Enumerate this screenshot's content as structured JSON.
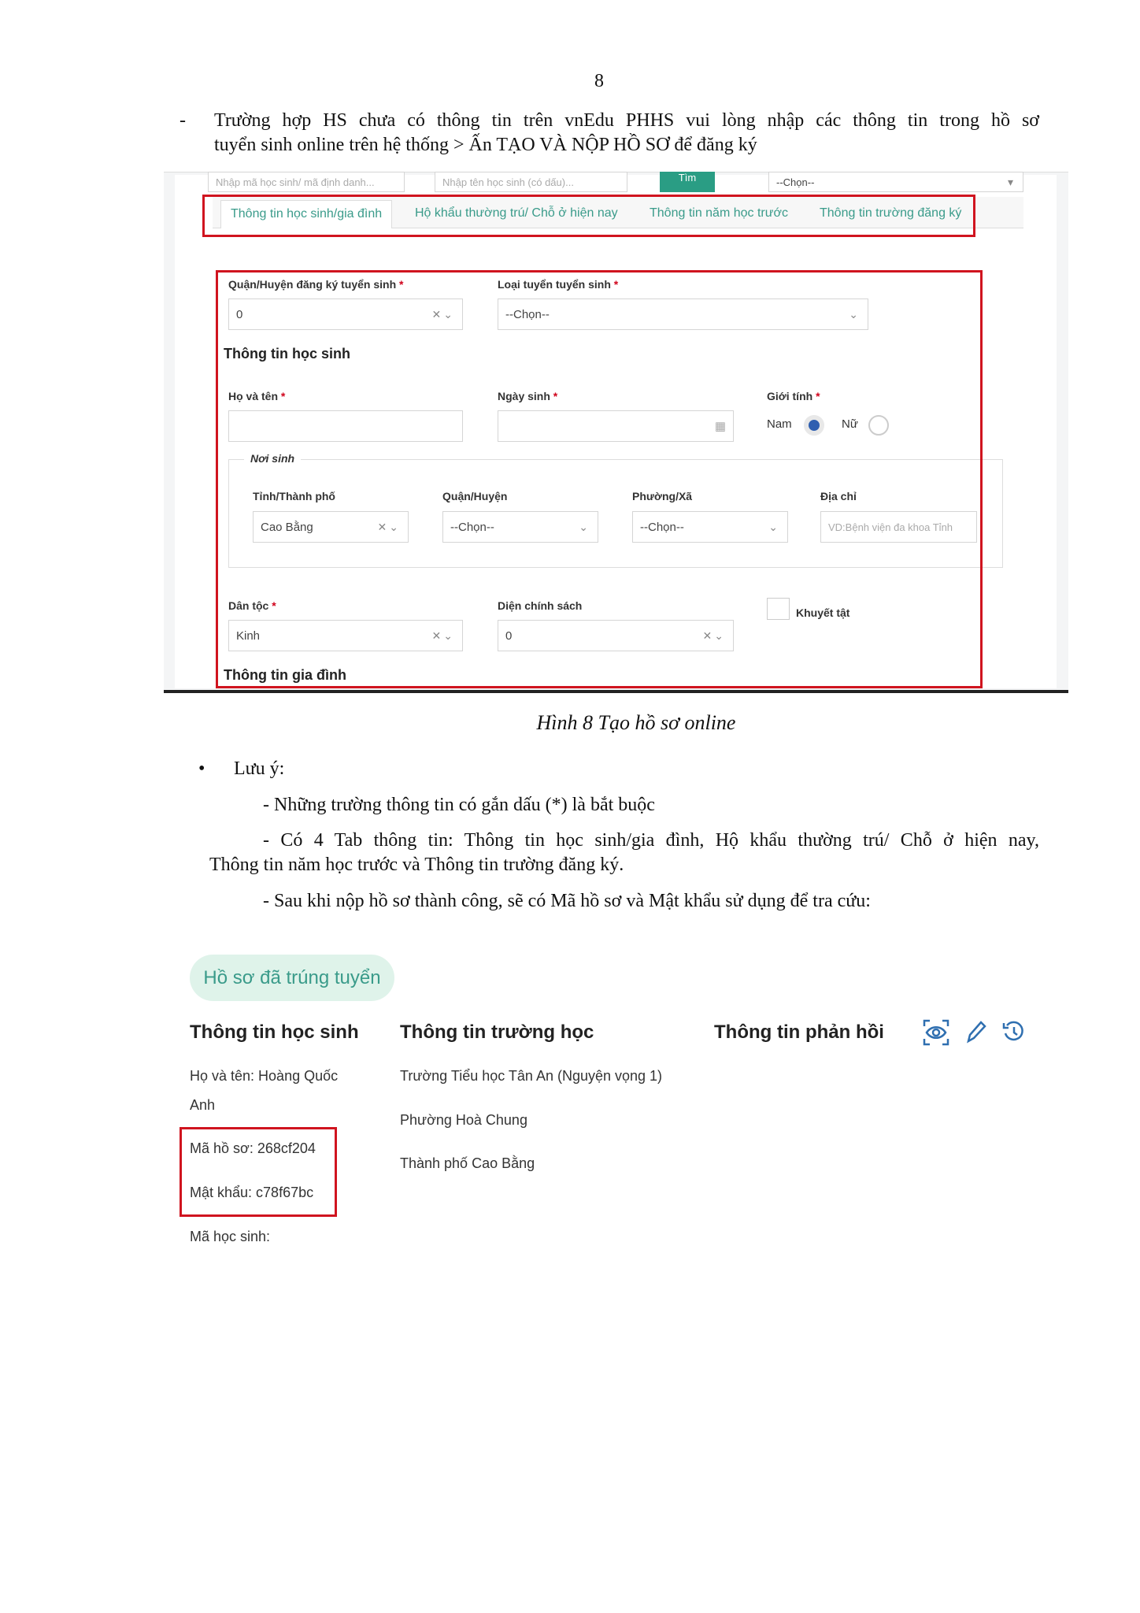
{
  "page_number": "8",
  "intro": {
    "dash": "-",
    "line1": "Trường hợp HS chưa có thông tin trên vnEdu PHHS vui lòng nhập các thông tin trong hồ sơ",
    "line2": "tuyển sinh online trên hệ thống > Ấn TẠO VÀ NỘP HỒ SƠ để đăng ký"
  },
  "form": {
    "search": {
      "code_placeholder": "Nhập mã học sinh/ mã định danh...",
      "name_placeholder": "Nhập tên học sinh (có dấu)...",
      "button": "Tìm",
      "select": "--Chọn--"
    },
    "tabs": [
      "Thông tin học sinh/gia đình",
      "Hộ khẩu thường trú/ Chỗ ở hiện nay",
      "Thông tin năm học trước",
      "Thông tin trường đăng ký"
    ],
    "district_label": "Quận/Huyện đăng ký tuyển sinh",
    "district_value": "0",
    "type_label": "Loại tuyển tuyển sinh",
    "type_value": "--Chọn--",
    "student_section": "Thông tin học sinh",
    "name_label": "Họ và tên",
    "dob_label": "Ngày sinh",
    "gender_label": "Giới tính",
    "gender_options": [
      {
        "label": "Nam",
        "checked": true
      },
      {
        "label": "Nữ",
        "checked": false
      }
    ],
    "birthplace": {
      "legend": "Nơi sinh",
      "province_label": "Tỉnh/Thành phố",
      "province_value": "Cao Bằng",
      "district_label": "Quận/Huyện",
      "district_value": "--Chọn--",
      "ward_label": "Phường/Xã",
      "ward_value": "--Chọn--",
      "address_label": "Địa chỉ",
      "address_placeholder": "VD:Bệnh viện đa khoa Tỉnh"
    },
    "ethnic_label": "Dân tộc",
    "ethnic_value": "Kinh",
    "policy_label": "Diện chính sách",
    "policy_value": "0",
    "disability_label": "Khuyết tật",
    "disability_checked": false,
    "family_section": "Thông tin gia đình",
    "required_mark": "*"
  },
  "caption": "Hình 8 Tạo hồ sơ online",
  "notes": {
    "bullet": "Lưu ý:",
    "n1": "- Những trường thông tin có gắn dấu (*) là bắt buộc",
    "n2a": "- Có 4 Tab thông tin: Thông tin học sinh/gia đình, Hộ khẩu thường trú/ Chỗ ở hiện nay,",
    "n2b": "Thông tin năm học trước và Thông tin trường đăng ký.",
    "n3": "- Sau khi nộp hồ sơ thành công, sẽ có Mã hồ sơ và Mật khẩu sử dụng để tra cứu:"
  },
  "result": {
    "badge": "Hồ sơ đã trúng tuyển",
    "headers": [
      "Thông tin học sinh",
      "Thông tin trường học",
      "Thông tin phản hồi"
    ],
    "student": {
      "name1": "Họ và tên: Hoàng Quốc",
      "name2": "Anh",
      "code": "Mã hồ sơ: 268cf204",
      "password": "Mật khẩu: c78f67bc",
      "student_id": "Mã học sinh:"
    },
    "school": [
      "Trường Tiểu học Tân An (Nguyện vọng 1)",
      "Phường Hoà Chung",
      "Thành phố Cao Bằng"
    ],
    "icons": [
      "view-icon",
      "edit-icon",
      "history-icon"
    ]
  },
  "colors": {
    "accent": "#3a9b8a",
    "highlight": "#d0141f",
    "badge_bg": "#dff3ea",
    "icon": "#2f6fb0"
  }
}
